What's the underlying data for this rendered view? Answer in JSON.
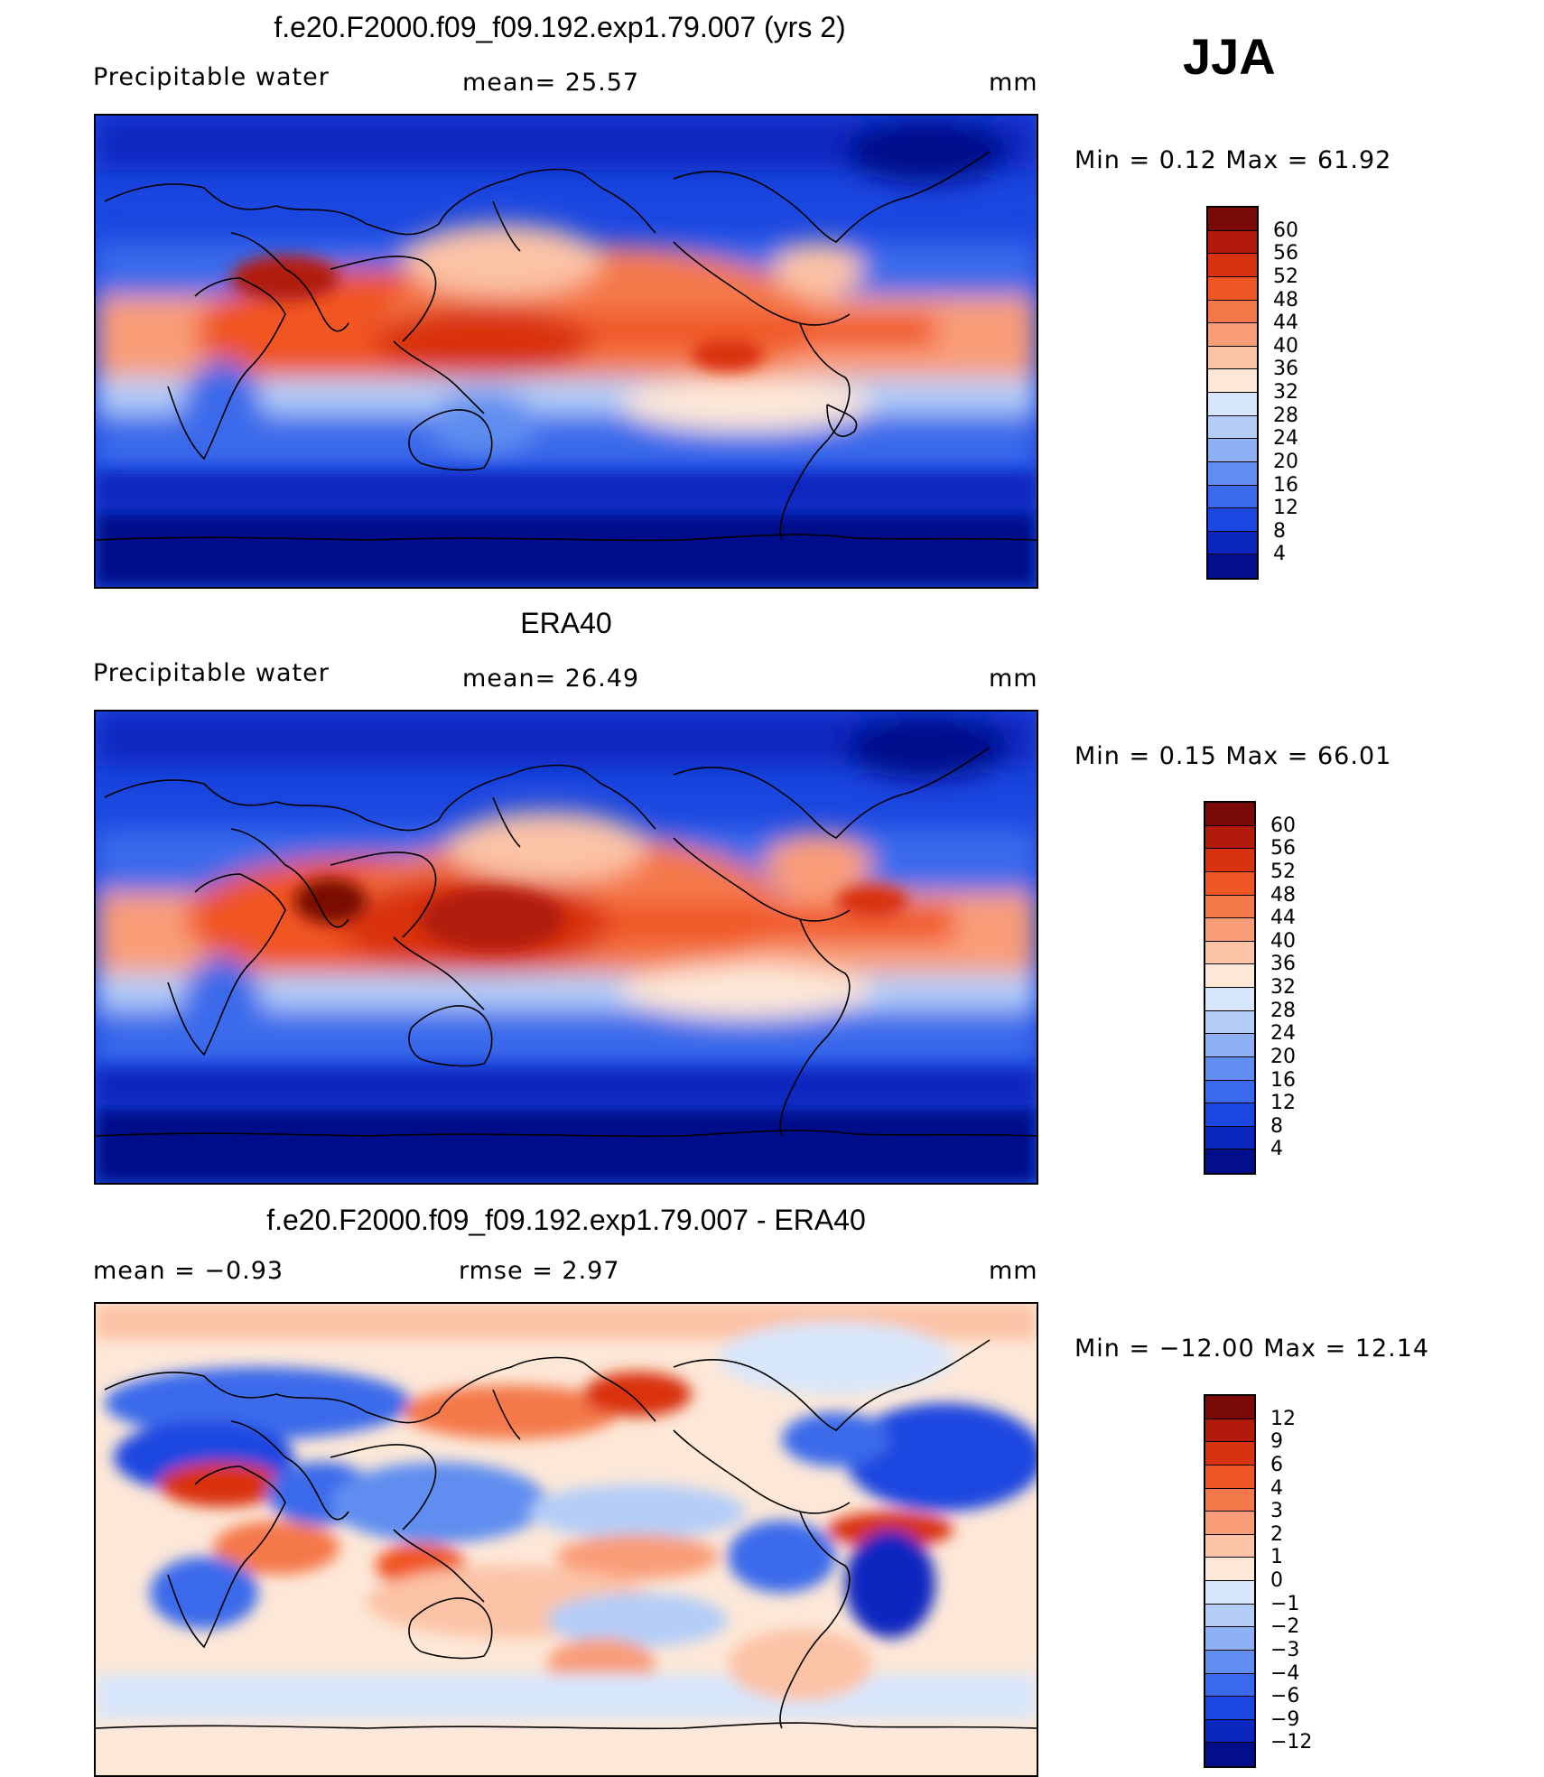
{
  "season": "JJA",
  "units": "mm",
  "panels": [
    {
      "title": "f.e20.F2000.f09_f09.192.exp1.79.007 (yrs 2)",
      "variable": "Precipitable  water",
      "stat1": "mean=   25.57",
      "minmax": "Min  =     0.12  Max  =    61.92"
    },
    {
      "title": "ERA40",
      "variable": "Precipitable  water",
      "stat1": "mean=   26.49",
      "minmax": "Min  =     0.15  Max  =    66.01"
    },
    {
      "title": "f.e20.F2000.f09_f09.192.exp1.79.007 - ERA40",
      "stat0": "mean  =    −0.93",
      "stat1": "rmse  =     2.97",
      "minmax": "Min  = −12.00  Max  =    12.14"
    }
  ],
  "colorbar_abs": {
    "labels": [
      "60",
      "56",
      "52",
      "48",
      "44",
      "40",
      "36",
      "32",
      "28",
      "24",
      "20",
      "16",
      "12",
      "8",
      "4"
    ],
    "colors": [
      "#7a0a05",
      "#b11a0a",
      "#d9320e",
      "#f05524",
      "#f4784a",
      "#f99d78",
      "#fcc3a6",
      "#fde8d8",
      "#d8e6fb",
      "#b3cdf8",
      "#8db1f3",
      "#5f8ef0",
      "#3a6aeb",
      "#1a47e0",
      "#0a28c0",
      "#020e8a"
    ]
  },
  "colorbar_diff": {
    "labels": [
      "12",
      "9",
      "6",
      "4",
      "3",
      "2",
      "1",
      "0",
      "−1",
      "−2",
      "−3",
      "−4",
      "−6",
      "−9",
      "−12"
    ],
    "colors": [
      "#7a0a05",
      "#b11a0a",
      "#d9320e",
      "#f05524",
      "#f4784a",
      "#f99d78",
      "#fcc3a6",
      "#fde8d8",
      "#d8e6fb",
      "#b3cdf8",
      "#8db1f3",
      "#5f8ef0",
      "#3a6aeb",
      "#1a47e0",
      "#0a28c0",
      "#020e8a"
    ]
  }
}
